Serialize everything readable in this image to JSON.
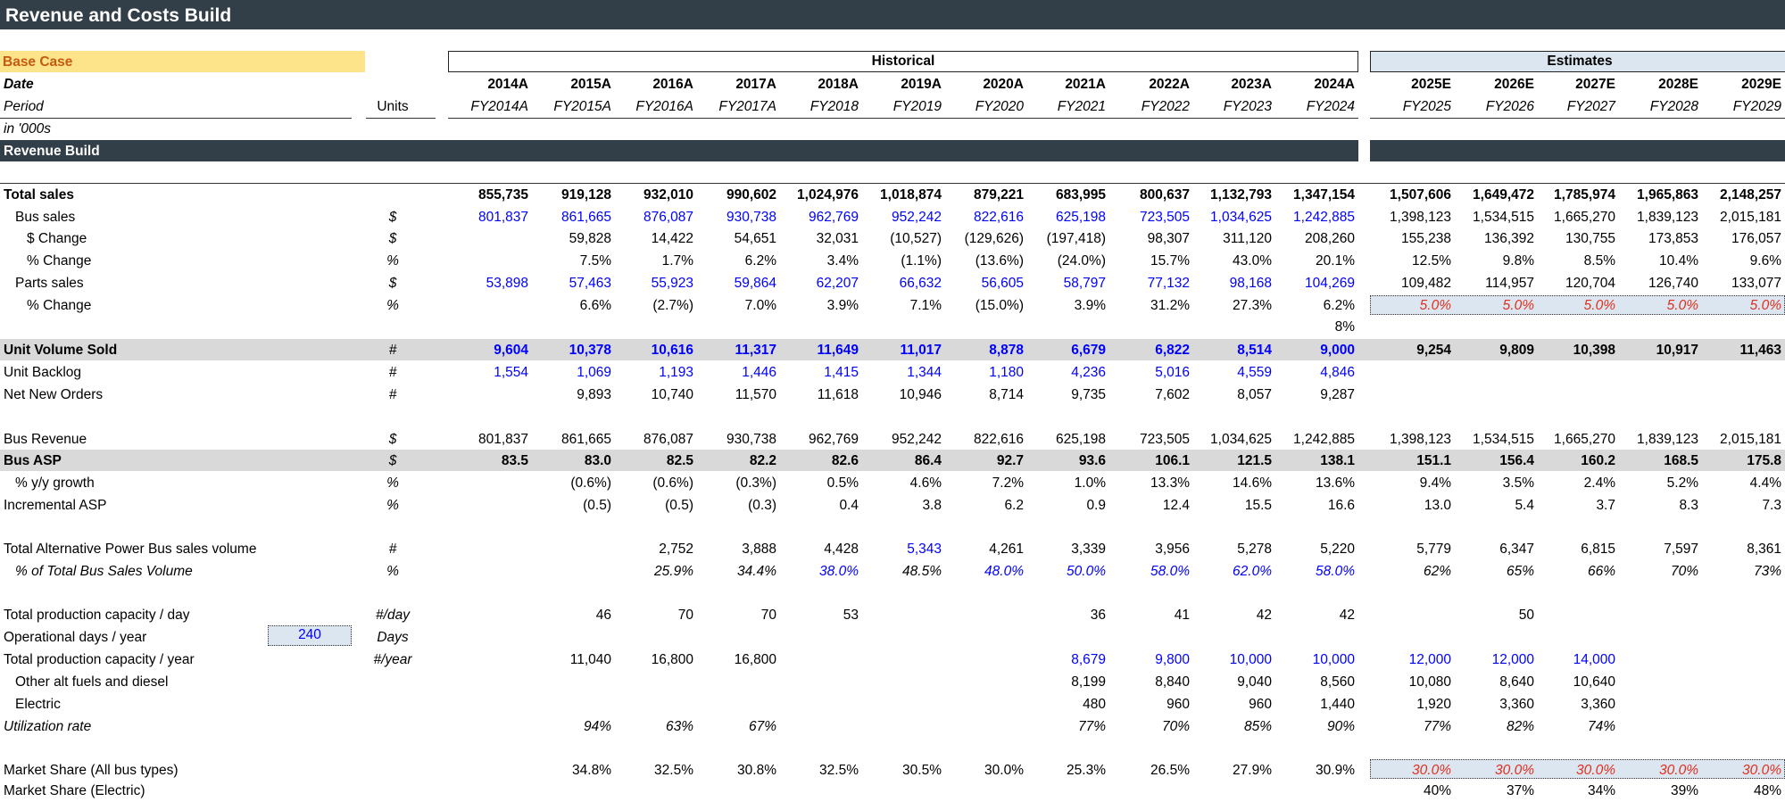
{
  "title": "Revenue and Costs Build",
  "scenario": "Base Case",
  "groups": {
    "historical": "Historical",
    "estimates": "Estimates"
  },
  "header": {
    "date_label": "Date",
    "period_label": "Period",
    "units_label": "Units",
    "scale_note": "in '000s",
    "years": [
      "2014A",
      "2015A",
      "2016A",
      "2017A",
      "2018A",
      "2019A",
      "2020A",
      "2021A",
      "2022A",
      "2023A",
      "2024A",
      "2025E",
      "2026E",
      "2027E",
      "2028E",
      "2029E"
    ],
    "periods": [
      "FY2014A",
      "FY2015A",
      "FY2016A",
      "FY2017A",
      "FY2018",
      "FY2019",
      "FY2020",
      "FY2021",
      "FY2022",
      "FY2023",
      "FY2024",
      "FY2025",
      "FY2026",
      "FY2027",
      "FY2028",
      "FY2029"
    ]
  },
  "section_title": "Revenue Build",
  "operational_days_input": "240",
  "rows": [
    {
      "label": "Total sales",
      "indent": 0,
      "bold": true,
      "italic": false,
      "units": "",
      "values": [
        "855,735",
        "919,128",
        "932,010",
        "990,602",
        "1,024,976",
        "1,018,874",
        "879,221",
        "683,995",
        "800,637",
        "1,132,793",
        "1,347,154",
        "1,507,606",
        "1,649,472",
        "1,785,974",
        "1,965,863",
        "2,148,257"
      ]
    },
    {
      "label": "Bus sales",
      "indent": 1,
      "units": "$",
      "values": [
        "801,837",
        "861,665",
        "876,087",
        "930,738",
        "962,769",
        "952,242",
        "822,616",
        "625,198",
        "723,505",
        "1,034,625",
        "1,242,885",
        "1,398,123",
        "1,534,515",
        "1,665,270",
        "1,839,123",
        "2,015,181"
      ]
    },
    {
      "label": "$ Change",
      "indent": 2,
      "units": "$",
      "values": [
        "",
        "59,828",
        "14,422",
        "54,651",
        "32,031",
        "(10,527)",
        "(129,626)",
        "(197,418)",
        "98,307",
        "311,120",
        "208,260",
        "155,238",
        "136,392",
        "130,755",
        "173,853",
        "176,057"
      ]
    },
    {
      "label": "% Change",
      "indent": 2,
      "units": "%",
      "values": [
        "",
        "7.5%",
        "1.7%",
        "6.2%",
        "3.4%",
        "(1.1%)",
        "(13.6%)",
        "(24.0%)",
        "15.7%",
        "43.0%",
        "20.1%",
        "12.5%",
        "9.8%",
        "8.5%",
        "10.4%",
        "9.6%"
      ]
    },
    {
      "label": "Parts sales",
      "indent": 1,
      "units": "$",
      "values": [
        "53,898",
        "57,463",
        "55,923",
        "59,864",
        "62,207",
        "66,632",
        "56,605",
        "58,797",
        "77,132",
        "98,168",
        "104,269",
        "109,482",
        "114,957",
        "120,704",
        "126,740",
        "133,077"
      ]
    },
    {
      "label": "% Change",
      "indent": 2,
      "units": "%",
      "values": [
        "",
        "6.6%",
        "(2.7%)",
        "7.0%",
        "3.9%",
        "7.1%",
        "(15.0%)",
        "3.9%",
        "31.2%",
        "27.3%",
        "6.2%",
        "5.0%",
        "5.0%",
        "5.0%",
        "5.0%",
        "5.0%"
      ],
      "note": "8%"
    },
    {
      "label": "Unit Volume Sold",
      "indent": 0,
      "bold": true,
      "units": "#",
      "values": [
        "9,604",
        "10,378",
        "10,616",
        "11,317",
        "11,649",
        "11,017",
        "8,878",
        "6,679",
        "6,822",
        "8,514",
        "9,000",
        "9,254",
        "9,809",
        "10,398",
        "10,917",
        "11,463"
      ]
    },
    {
      "label": "Unit Backlog",
      "indent": 0,
      "units": "#",
      "values": [
        "1,554",
        "1,069",
        "1,193",
        "1,446",
        "1,415",
        "1,344",
        "1,180",
        "4,236",
        "5,016",
        "4,559",
        "4,846",
        "",
        "",
        "",
        "",
        ""
      ]
    },
    {
      "label": "Net New Orders",
      "indent": 0,
      "units": "#",
      "values": [
        "",
        "9,893",
        "10,740",
        "11,570",
        "11,618",
        "10,946",
        "8,714",
        "9,735",
        "7,602",
        "8,057",
        "9,287",
        "",
        "",
        "",
        "",
        ""
      ]
    },
    {
      "label": "Bus Revenue",
      "indent": 0,
      "units": "$",
      "values": [
        "801,837",
        "861,665",
        "876,087",
        "930,738",
        "962,769",
        "952,242",
        "822,616",
        "625,198",
        "723,505",
        "1,034,625",
        "1,242,885",
        "1,398,123",
        "1,534,515",
        "1,665,270",
        "1,839,123",
        "2,015,181"
      ]
    },
    {
      "label": "Bus ASP",
      "indent": 0,
      "bold": true,
      "units": "$",
      "values": [
        "83.5",
        "83.0",
        "82.5",
        "82.2",
        "82.6",
        "86.4",
        "92.7",
        "93.6",
        "106.1",
        "121.5",
        "138.1",
        "151.1",
        "156.4",
        "160.2",
        "168.5",
        "175.8"
      ]
    },
    {
      "label": "% y/y growth",
      "indent": 1,
      "units": "%",
      "values": [
        "",
        "(0.6%)",
        "(0.6%)",
        "(0.3%)",
        "0.5%",
        "4.6%",
        "7.2%",
        "1.0%",
        "13.3%",
        "14.6%",
        "13.6%",
        "9.4%",
        "3.5%",
        "2.4%",
        "5.2%",
        "4.4%"
      ]
    },
    {
      "label": "Incremental ASP",
      "indent": 0,
      "units": "%",
      "values": [
        "",
        "(0.5)",
        "(0.5)",
        "(0.3)",
        "0.4",
        "3.8",
        "6.2",
        "0.9",
        "12.4",
        "15.5",
        "16.6",
        "13.0",
        "5.4",
        "3.7",
        "8.3",
        "7.3"
      ]
    },
    {
      "label": "Total Alternative Power Bus sales volume",
      "indent": 0,
      "units": "#",
      "values": [
        "",
        "",
        "2,752",
        "3,888",
        "4,428",
        "5,343",
        "4,261",
        "3,339",
        "3,956",
        "5,278",
        "5,220",
        "5,779",
        "6,347",
        "6,815",
        "7,597",
        "8,361"
      ]
    },
    {
      "label": "% of Total Bus Sales Volume",
      "indent": 1,
      "italic": true,
      "units": "%",
      "values": [
        "",
        "",
        "25.9%",
        "34.4%",
        "38.0%",
        "48.5%",
        "48.0%",
        "50.0%",
        "58.0%",
        "62.0%",
        "58.0%",
        "62%",
        "65%",
        "66%",
        "70%",
        "73%"
      ]
    },
    {
      "label": "Total production capacity / day",
      "indent": 0,
      "units": "#/day",
      "values": [
        "",
        "46",
        "70",
        "70",
        "53",
        "",
        "",
        "36",
        "41",
        "42",
        "42",
        "",
        "50",
        "",
        "",
        ""
      ]
    },
    {
      "label": "Operational days / year",
      "indent": 0,
      "units": "Days",
      "values": [
        "",
        "",
        "",
        "",
        "",
        "",
        "",
        "",
        "",
        "",
        "",
        "",
        "",
        "",
        "",
        ""
      ]
    },
    {
      "label": "Total production capacity / year",
      "indent": 0,
      "units": "#/year",
      "values": [
        "",
        "11,040",
        "16,800",
        "16,800",
        "",
        "",
        "",
        "8,679",
        "9,800",
        "10,000",
        "10,000",
        "12,000",
        "12,000",
        "14,000",
        "",
        ""
      ]
    },
    {
      "label": "Other alt fuels and diesel",
      "indent": 1,
      "units": "",
      "values": [
        "",
        "",
        "",
        "",
        "",
        "",
        "",
        "8,199",
        "8,840",
        "9,040",
        "8,560",
        "10,080",
        "8,640",
        "10,640",
        "",
        ""
      ]
    },
    {
      "label": "Electric",
      "indent": 1,
      "units": "",
      "values": [
        "",
        "",
        "",
        "",
        "",
        "",
        "",
        "480",
        "960",
        "960",
        "1,440",
        "1,920",
        "3,360",
        "3,360",
        "",
        ""
      ]
    },
    {
      "label": "Utilization rate",
      "indent": 0,
      "italic": true,
      "units": "",
      "values": [
        "",
        "94%",
        "63%",
        "67%",
        "",
        "",
        "",
        "77%",
        "70%",
        "85%",
        "90%",
        "77%",
        "82%",
        "74%",
        "",
        ""
      ]
    },
    {
      "label": "Market Share (All bus types)",
      "indent": 0,
      "units": "",
      "values": [
        "",
        "34.8%",
        "32.5%",
        "30.8%",
        "32.5%",
        "30.5%",
        "30.0%",
        "25.3%",
        "26.5%",
        "27.9%",
        "30.9%",
        "30.0%",
        "30.0%",
        "30.0%",
        "30.0%",
        "30.0%"
      ]
    },
    {
      "label": "Market Share (Electric)",
      "indent": 0,
      "units": "",
      "values": [
        "",
        "",
        "",
        "",
        "",
        "",
        "",
        "",
        "",
        "",
        "",
        "40%",
        "37%",
        "34%",
        "39%",
        "48%"
      ]
    }
  ],
  "colors": {
    "header_band": "#333f48",
    "base_case_fill": "#fde38a",
    "base_case_text": "#c55a11",
    "input_blue": "#0000ff",
    "assumption_red": "#e0301e",
    "estimate_fill": "#dce6f1",
    "shade": "#d9d9d9"
  }
}
